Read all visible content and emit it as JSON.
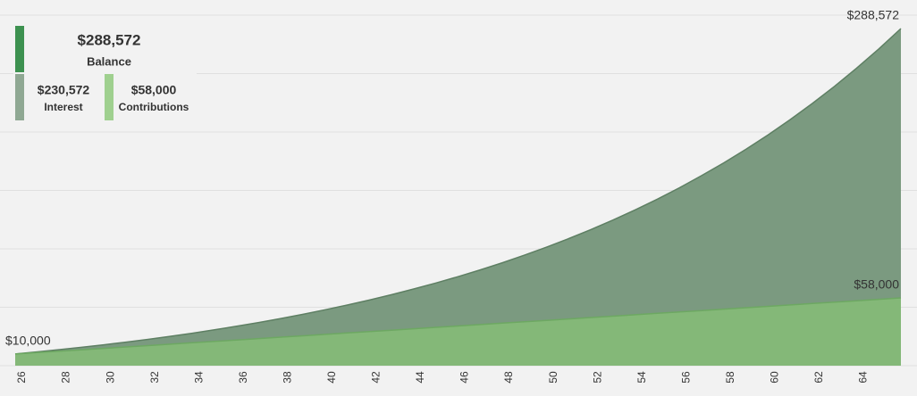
{
  "chart_data": {
    "type": "area",
    "x": [
      26,
      27,
      28,
      29,
      30,
      31,
      32,
      33,
      34,
      35,
      36,
      37,
      38,
      39,
      40,
      41,
      42,
      43,
      44,
      45,
      46,
      47,
      48,
      49,
      50,
      51,
      52,
      53,
      54,
      55,
      56,
      57,
      58,
      59,
      60,
      61,
      62,
      63,
      64,
      65,
      66
    ],
    "xlim": [
      26,
      66
    ],
    "xticks": [
      26,
      28,
      30,
      32,
      34,
      36,
      38,
      40,
      42,
      44,
      46,
      48,
      50,
      52,
      54,
      56,
      58,
      60,
      62,
      64
    ],
    "ylim": [
      0,
      300000
    ],
    "yticks": [
      0,
      50000,
      100000,
      150000,
      200000,
      250000,
      300000
    ],
    "grid": true,
    "series": [
      {
        "name": "Balance",
        "color": "#7b9a80",
        "line_color": "#5e7f63",
        "swatch": "#3d9150",
        "total": 288572,
        "total_label": "$288,572",
        "values": [
          10000,
          11800,
          13708,
          15730,
          17874,
          20147,
          22556,
          25109,
          27815,
          30684,
          33725,
          36949,
          40366,
          43988,
          47827,
          51897,
          56211,
          60783,
          65630,
          70768,
          76214,
          81987,
          88106,
          94592,
          101468,
          108756,
          116481,
          124670,
          133351,
          142552,
          152305,
          162643,
          173602,
          185218,
          197531,
          210583,
          224418,
          239083,
          254628,
          271105,
          288572
        ]
      },
      {
        "name": "Contributions",
        "color": "#84b878",
        "line_color": "#6da862",
        "swatch": "#9fd08f",
        "total": 58000,
        "total_label": "$58,000",
        "values": [
          10000,
          11200,
          12400,
          13600,
          14800,
          16000,
          17200,
          18400,
          19600,
          20800,
          22000,
          23200,
          24400,
          25600,
          26800,
          28000,
          29200,
          30400,
          31600,
          32800,
          34000,
          35200,
          36400,
          37600,
          38800,
          40000,
          41200,
          42400,
          43600,
          44800,
          46000,
          47200,
          48400,
          49600,
          50800,
          52000,
          53200,
          54400,
          55600,
          56800,
          58000
        ]
      }
    ],
    "interest": {
      "name": "Interest",
      "color": "#8fa893",
      "value": 230572,
      "label": "$230,572"
    },
    "annotations": [
      {
        "x": 26,
        "value": 10000,
        "label": "$10,000"
      },
      {
        "x": 66,
        "value": 288572,
        "label": "$288,572"
      },
      {
        "x": 66,
        "value": 58000,
        "label": "$58,000"
      }
    ]
  }
}
